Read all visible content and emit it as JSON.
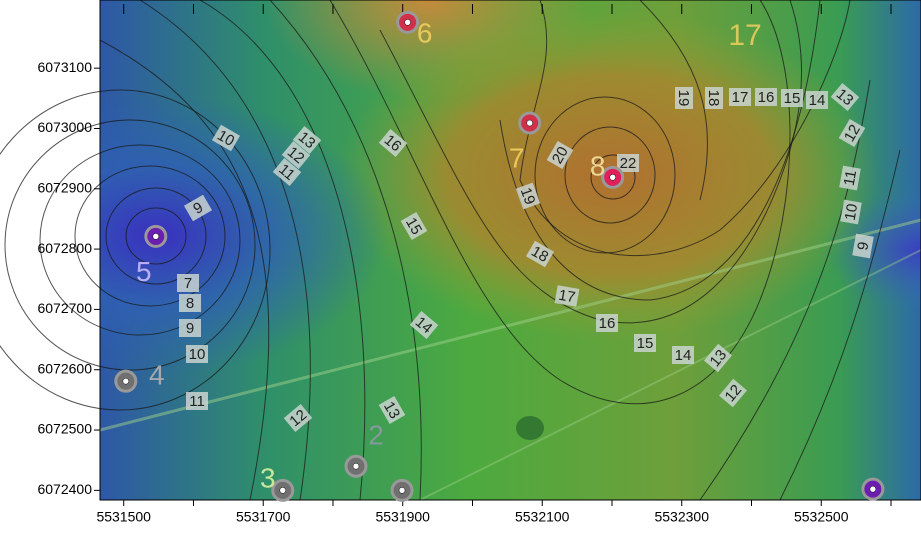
{
  "chart_data": {
    "type": "contour-map",
    "xlim": [
      5531466,
      5532643
    ],
    "ylim": [
      6072384,
      6073213
    ],
    "xticks": [
      5531500,
      5531700,
      5531900,
      5532100,
      5532300,
      5532500
    ],
    "xminorticks": [
      5531600,
      5531800,
      5532000,
      5532200,
      5532400,
      5532600
    ],
    "yticks": [
      6072400,
      6072500,
      6072600,
      6072700,
      6072800,
      6072900,
      6073000,
      6073100
    ],
    "wells": [
      {
        "label": "5",
        "x": 5531546,
        "y": 6072821,
        "color": "#6a1fb0"
      },
      {
        "label": "4",
        "x": 5531503,
        "y": 6072581,
        "color": "#707070"
      },
      {
        "label": "6",
        "x": 5531907,
        "y": 6073176,
        "color": "#d0304a"
      },
      {
        "label": "7",
        "x": 5532082,
        "y": 6073009,
        "color": "#d0304a"
      },
      {
        "label": "8",
        "x": 5532201,
        "y": 6072919,
        "color": "#e0205a"
      },
      {
        "label": "2",
        "x": 5531833,
        "y": 6072440,
        "color": "#707070"
      },
      {
        "label": "3",
        "x": 5531728,
        "y": 6072400,
        "color": "#707070"
      },
      {
        "label": null,
        "x": 5531899,
        "y": 6072400,
        "color": "#707070"
      },
      {
        "label": null,
        "x": 5532574,
        "y": 6072402,
        "color": "#6a1fb0"
      }
    ],
    "annotations": [
      "17"
    ],
    "contour_labels": [
      10,
      13,
      12,
      11,
      16,
      9,
      7,
      8,
      9,
      10,
      11,
      12,
      13,
      14,
      15,
      17,
      18,
      19,
      20,
      22,
      19,
      18,
      17,
      16,
      15,
      14,
      13,
      12,
      11,
      10,
      9,
      16,
      15,
      14,
      13,
      12
    ]
  }
}
